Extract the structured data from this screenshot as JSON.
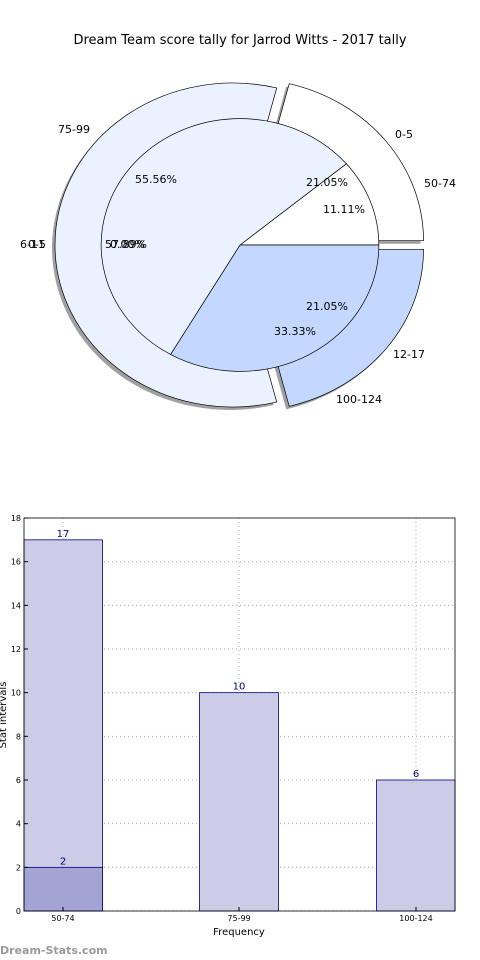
{
  "chart_data": [
    {
      "type": "pie",
      "title": "Dream Team score tally for Jarrod Witts - 2017 tally",
      "rings": [
        {
          "name": "outer",
          "slices": [
            {
              "label": "0-5",
              "pct_text": "",
              "value": 0.0,
              "color": "#ffffff"
            },
            {
              "label": "50-74",
              "pct_text": "21.05%",
              "value": 21.05,
              "color": "#ffffff"
            },
            {
              "label": "12-17",
              "pct_text": "21.05%",
              "value": 21.05,
              "color": "#c4d8ff"
            },
            {
              "label": "100-124",
              "pct_text": "",
              "value": 0.0,
              "color": "#c4d8ff"
            },
            {
              "label": "6-11",
              "pct_text": "57.89%",
              "value": 57.89,
              "color": "#eaf1ff"
            },
            {
              "label": "75-99",
              "pct_text": "",
              "value": 0.0,
              "color": "#eaf1ff"
            }
          ]
        },
        {
          "name": "inner",
          "slices": [
            {
              "label": "50-74",
              "pct_text": "11.11%",
              "value": 11.11,
              "color": "#ffffff"
            },
            {
              "label": "100-124",
              "pct_text": "33.33%",
              "value": 33.33,
              "color": "#c4d8ff"
            },
            {
              "label": "0-5",
              "pct_text": "0.00%",
              "value": 0.0,
              "color": "#eaf1ff"
            },
            {
              "label": "75-99",
              "pct_text": "55.56%",
              "value": 55.56,
              "color": "#eaf1ff"
            }
          ]
        }
      ]
    },
    {
      "type": "bar",
      "title": "",
      "xlabel": "Frequency",
      "ylabel": "Stat intervals",
      "categories": [
        "50-74",
        "75-99",
        "100-124"
      ],
      "series": [
        {
          "values": [
            17,
            10,
            6
          ],
          "color": "#ccccE6"
        },
        {
          "values": [
            2,
            null,
            null
          ],
          "color": "#a3a3d4"
        }
      ],
      "ylim": [
        0,
        18
      ],
      "yticks": [
        0,
        2,
        4,
        6,
        8,
        10,
        12,
        14,
        16,
        18
      ],
      "grid": true
    }
  ],
  "watermark": "Dream-Stats.com"
}
